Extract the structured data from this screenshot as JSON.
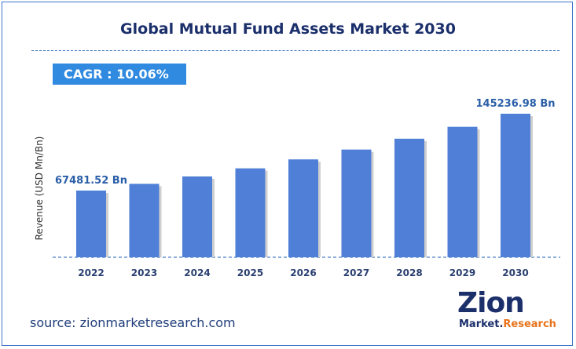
{
  "title": "Global Mutual Fund Assets Market 2030",
  "cagr": "CAGR : 10.06%",
  "source": "source: zionmarketresearch.com",
  "logo": {
    "main": "Zion",
    "sub_left": "Market.",
    "sub_right": "Research"
  },
  "colors": {
    "bar": "#4f7fd6",
    "title": "#1b2f6b",
    "badge": "#2f8ae0",
    "label": "#2a5ea8"
  },
  "chart_data": {
    "type": "bar",
    "title": "Global Mutual Fund Assets Market 2030",
    "xlabel": "",
    "ylabel": "Revenue (USD Mn/Bn)",
    "categories": [
      "2022",
      "2023",
      "2024",
      "2025",
      "2026",
      "2027",
      "2028",
      "2029",
      "2030"
    ],
    "values": [
      67481.52,
      74271.5,
      81743.2,
      89966.6,
      99017.2,
      108978.3,
      119941.5,
      132007.6,
      145236.98
    ],
    "data_labels": {
      "2022": "67481.52 Bn",
      "2030": "145236.98 Bn"
    },
    "ylim": [
      0,
      145236.98
    ],
    "grid": false,
    "legend": "none"
  }
}
